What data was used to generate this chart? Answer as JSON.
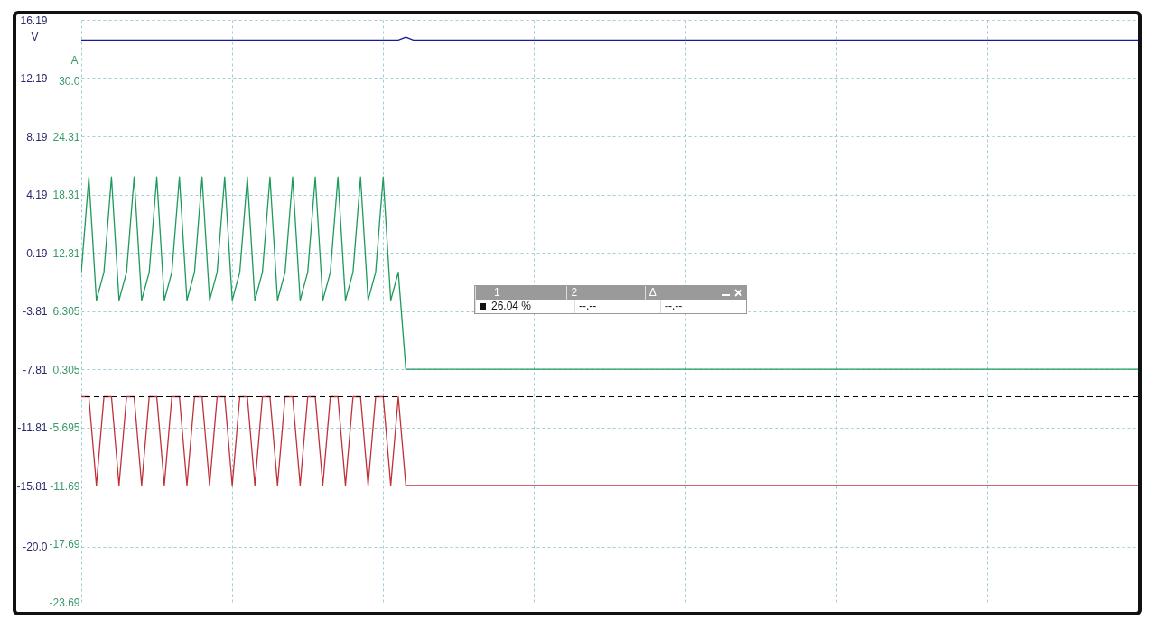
{
  "chart_data": {
    "type": "line",
    "ylabel": "V",
    "y2label": "A",
    "categories": [
      null,
      null,
      null,
      null,
      null,
      null,
      null,
      null,
      null,
      null,
      null,
      null,
      null,
      null,
      null,
      null,
      null,
      null,
      null,
      null,
      null,
      null,
      null,
      null,
      null,
      null,
      null,
      null,
      null,
      null,
      null,
      null,
      null,
      null,
      null,
      null,
      null,
      null,
      null,
      null,
      null,
      null,
      null,
      null,
      null,
      null,
      null,
      null,
      null,
      null,
      null,
      null,
      null,
      null,
      null,
      null,
      null,
      null,
      null,
      null,
      null,
      null,
      null,
      null,
      null,
      null,
      null,
      null,
      null,
      null,
      null,
      null,
      null,
      null,
      null,
      null,
      null,
      null,
      null,
      null,
      null,
      null,
      null,
      null,
      null,
      null,
      null,
      null,
      null,
      null,
      null,
      null,
      null,
      null,
      null,
      null,
      null,
      null,
      null,
      null,
      null,
      null,
      null,
      null,
      null,
      null,
      null,
      null,
      null,
      null,
      null,
      null,
      null,
      null,
      null,
      null,
      null,
      null,
      null,
      null,
      null,
      null,
      null,
      null,
      null,
      null,
      null,
      null,
      null,
      null,
      null,
      null,
      null,
      null,
      null,
      null,
      null,
      null,
      null,
      null,
      null
    ],
    "series": [
      {
        "color": "#1a1a9a",
        "values": [
          14.8,
          14.8,
          14.8,
          14.8,
          14.8,
          14.8,
          14.8,
          14.8,
          14.8,
          14.8,
          14.8,
          14.8,
          14.8,
          14.8,
          14.8,
          14.8,
          14.8,
          14.8,
          14.8,
          14.8,
          14.8,
          14.8,
          14.8,
          14.8,
          14.8,
          14.8,
          14.8,
          14.8,
          14.8,
          14.8,
          14.8,
          14.8,
          14.8,
          14.8,
          14.8,
          14.8,
          14.8,
          14.8,
          14.8,
          14.8,
          14.8,
          14.8,
          14.8,
          15.0,
          14.8,
          14.8,
          14.8,
          14.8,
          14.8,
          14.8,
          14.8,
          14.8,
          14.8,
          14.8,
          14.8,
          14.8,
          14.8,
          14.8,
          14.8,
          14.8,
          14.8,
          14.8,
          14.8,
          14.8,
          14.8,
          14.8,
          14.8,
          14.8,
          14.8,
          14.8,
          14.8,
          14.8,
          14.8,
          14.8,
          14.8,
          14.8,
          14.8,
          14.8,
          14.8,
          14.8,
          14.8,
          14.8,
          14.8,
          14.8,
          14.8,
          14.8,
          14.8,
          14.8,
          14.8,
          14.8,
          14.8,
          14.8,
          14.8,
          14.8,
          14.8,
          14.8,
          14.8,
          14.8,
          14.8,
          14.8,
          14.8,
          14.8,
          14.8,
          14.8,
          14.8,
          14.8,
          14.8,
          14.8,
          14.8,
          14.8,
          14.8,
          14.8,
          14.8,
          14.8,
          14.8,
          14.8,
          14.8,
          14.8,
          14.8,
          14.8,
          14.8,
          14.8,
          14.8,
          14.8,
          14.8,
          14.8,
          14.8,
          14.8,
          14.8,
          14.8,
          14.8,
          14.8,
          14.8,
          14.8,
          14.8,
          14.8,
          14.8,
          14.8,
          14.8,
          14.8,
          14.8
        ]
      },
      {
        "color": "#1e9a5a",
        "axis": "y2",
        "values": [
          10.3,
          20.1,
          7.4,
          10.3,
          20.1,
          7.4,
          10.3,
          20.1,
          7.4,
          10.3,
          20.1,
          7.4,
          10.3,
          20.1,
          7.4,
          10.3,
          20.1,
          7.4,
          10.3,
          20.1,
          7.4,
          10.3,
          20.1,
          7.4,
          10.3,
          20.1,
          7.4,
          10.3,
          20.1,
          7.4,
          10.3,
          20.1,
          7.4,
          10.3,
          20.1,
          7.4,
          10.3,
          20.1,
          7.4,
          10.3,
          20.1,
          7.4,
          10.3,
          0.3,
          0.3,
          0.3,
          0.3,
          0.3,
          0.3,
          0.3,
          0.3,
          0.3,
          0.3,
          0.3,
          0.3,
          0.3,
          0.3,
          0.3,
          0.3,
          0.3,
          0.3,
          0.3,
          0.3,
          0.3,
          0.3,
          0.3,
          0.3,
          0.3,
          0.3,
          0.3,
          0.3,
          0.3,
          0.3,
          0.3,
          0.3,
          0.3,
          0.3,
          0.3,
          0.3,
          0.3,
          0.3,
          0.3,
          0.3,
          0.3,
          0.3,
          0.3,
          0.3,
          0.3,
          0.3,
          0.3,
          0.3,
          0.3,
          0.3,
          0.3,
          0.3,
          0.3,
          0.3,
          0.3,
          0.3,
          0.3,
          0.3,
          0.3,
          0.3,
          0.3,
          0.3,
          0.3,
          0.3,
          0.3,
          0.3,
          0.3,
          0.3,
          0.3,
          0.3,
          0.3,
          0.3,
          0.3,
          0.3,
          0.3,
          0.3,
          0.3,
          0.3,
          0.3,
          0.3,
          0.3,
          0.3,
          0.3,
          0.3,
          0.3,
          0.3,
          0.3,
          0.3,
          0.3,
          0.3,
          0.3,
          0.3,
          0.3,
          0.3,
          0.3,
          0.3,
          0.3,
          0.3
        ]
      },
      {
        "color": "#c0303a",
        "values": [
          -9.7,
          -9.7,
          -15.8,
          -9.7,
          -9.7,
          -15.8,
          -9.7,
          -9.7,
          -15.8,
          -9.7,
          -9.7,
          -15.8,
          -9.7,
          -9.7,
          -15.8,
          -9.7,
          -9.7,
          -15.8,
          -9.7,
          -9.7,
          -15.8,
          -9.7,
          -9.7,
          -15.8,
          -9.7,
          -9.7,
          -15.8,
          -9.7,
          -9.7,
          -15.8,
          -9.7,
          -9.7,
          -15.8,
          -9.7,
          -9.7,
          -15.8,
          -9.7,
          -9.7,
          -15.8,
          -9.7,
          -9.7,
          -15.8,
          -9.7,
          -15.8,
          -15.8,
          -15.8,
          -15.8,
          -15.8,
          -15.8,
          -15.8,
          -15.8,
          -15.8,
          -15.8,
          -15.8,
          -15.8,
          -15.8,
          -15.8,
          -15.8,
          -15.8,
          -15.8,
          -15.8,
          -15.8,
          -15.8,
          -15.8,
          -15.8,
          -15.8,
          -15.8,
          -15.8,
          -15.8,
          -15.8,
          -15.8,
          -15.8,
          -15.8,
          -15.8,
          -15.8,
          -15.8,
          -15.8,
          -15.8,
          -15.8,
          -15.8,
          -15.8,
          -15.8,
          -15.8,
          -15.8,
          -15.8,
          -15.8,
          -15.8,
          -15.8,
          -15.8,
          -15.8,
          -15.8,
          -15.8,
          -15.8,
          -15.8,
          -15.8,
          -15.8,
          -15.8,
          -15.8,
          -15.8,
          -15.8,
          -15.8,
          -15.8,
          -15.8,
          -15.8,
          -15.8,
          -15.8,
          -15.8,
          -15.8,
          -15.8,
          -15.8,
          -15.8,
          -15.8,
          -15.8,
          -15.8,
          -15.8,
          -15.8,
          -15.8,
          -15.8,
          -15.8,
          -15.8,
          -15.8,
          -15.8,
          -15.8,
          -15.8,
          -15.8,
          -15.8,
          -15.8,
          -15.8,
          -15.8,
          -15.8,
          -15.8,
          -15.8,
          -15.8,
          -15.8,
          -15.8,
          -15.8,
          -15.8,
          -15.8,
          -15.8,
          -15.8,
          -15.8
        ]
      }
    ],
    "ref_lines": [
      {
        "axis": "y",
        "value": -9.7,
        "color": "#000000",
        "line_style": "dashed"
      }
    ],
    "ylim": [
      -23.81,
      16.19
    ],
    "yticks": [
      16.19,
      12.19,
      8.19,
      4.19,
      0.19,
      -3.81,
      -7.81,
      -11.81,
      -15.81,
      {
        "value": -20,
        "label": "-20.0"
      }
    ],
    "y2lim": [
      -23.69,
      36.31
    ],
    "y2ticks": [
      {
        "value": 30,
        "label": "30.0"
      },
      24.31,
      18.31,
      12.31,
      6.305,
      0.305,
      -5.695,
      -11.69,
      -17.69,
      -23.69
    ],
    "tick_labels": "y",
    "grid": true,
    "annotations": [
      "1",
      "2",
      "Δ",
      "26.04 %",
      "--.--",
      "--.--"
    ]
  }
}
